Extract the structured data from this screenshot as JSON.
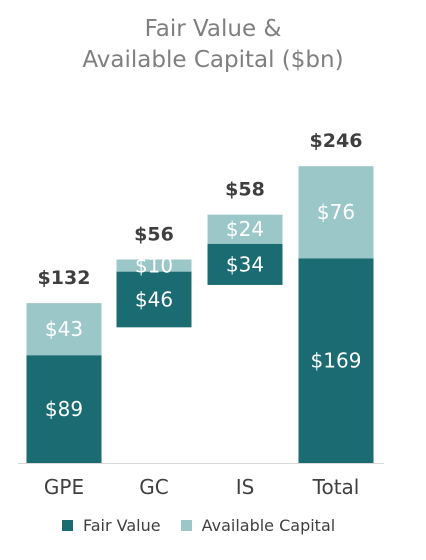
{
  "title_line1": "Fair Value &",
  "title_line2": "Available Capital ($bn)",
  "chart_data": {
    "type": "bar",
    "stacked": true,
    "categories": [
      "GPE",
      "GC",
      "IS",
      "Total"
    ],
    "series": [
      {
        "name": "Fair Value",
        "values": [
          89,
          46,
          34,
          169
        ],
        "labels": [
          "$89",
          "$46",
          "$34",
          "$169"
        ],
        "color": "#1a6b72"
      },
      {
        "name": "Available Capital",
        "values": [
          43,
          10,
          24,
          76
        ],
        "labels": [
          "$43",
          "$10",
          "$24",
          "$76"
        ],
        "color": "#9cc7c9"
      }
    ],
    "totals": [
      132,
      56,
      58,
      246
    ],
    "total_labels": [
      "$132",
      "$56",
      "$58",
      "$246"
    ],
    "bases": [
      0,
      112,
      147,
      0
    ],
    "ylim": [
      0,
      246
    ],
    "legend_position": "bottom",
    "grid": false
  }
}
